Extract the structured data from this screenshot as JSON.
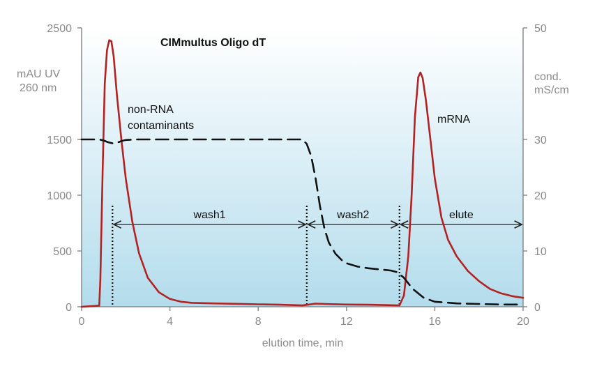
{
  "chart_data": {
    "type": "line",
    "title": "CIMmultus Oligo dT",
    "xlabel": "elution time, min",
    "ylabel_left": [
      "mAU UV",
      "260 nm"
    ],
    "ylabel_right": [
      "cond.",
      "mS/cm"
    ],
    "xlim": [
      0,
      20
    ],
    "ylim_left": [
      0,
      2500
    ],
    "ylim_right": [
      0,
      50
    ],
    "x_ticks": [
      "0",
      "4",
      "8",
      "12",
      "16",
      "20"
    ],
    "y_left_ticks": [
      "0",
      "500",
      "1000",
      "1500",
      "2500"
    ],
    "y_right_ticks": [
      "0",
      "10",
      "20",
      "30",
      "50"
    ],
    "series": [
      {
        "axis": "left",
        "style": "solid",
        "color": "#b22222",
        "x": [
          0,
          0.8,
          0.85,
          0.95,
          1.05,
          1.15,
          1.25,
          1.35,
          1.45,
          1.6,
          1.8,
          2.0,
          2.3,
          2.6,
          3.0,
          3.5,
          4.0,
          4.5,
          5.0,
          6.0,
          7.0,
          8.0,
          9.0,
          10.0,
          10.3,
          10.6,
          11.0,
          12.0,
          13.0,
          14.0,
          14.4,
          14.6,
          14.8,
          14.95,
          15.1,
          15.25,
          15.35,
          15.45,
          15.6,
          15.8,
          16.0,
          16.3,
          16.6,
          17.0,
          17.5,
          18.0,
          18.5,
          19.0,
          19.5,
          20.0
        ],
        "y": [
          0,
          10,
          250,
          1200,
          2000,
          2300,
          2390,
          2380,
          2250,
          1900,
          1500,
          1150,
          760,
          480,
          260,
          130,
          70,
          45,
          35,
          30,
          26,
          22,
          18,
          12,
          20,
          28,
          25,
          20,
          18,
          14,
          12,
          100,
          450,
          1000,
          1700,
          2060,
          2100,
          2050,
          1850,
          1500,
          1150,
          800,
          600,
          450,
          320,
          230,
          160,
          120,
          95,
          80
        ]
      },
      {
        "axis": "right",
        "style": "dashed",
        "color": "#111111",
        "x": [
          0,
          0.8,
          1.0,
          1.2,
          1.4,
          1.6,
          1.8,
          2.0,
          2.5,
          3.0,
          5.0,
          8.0,
          9.0,
          10.0,
          10.2,
          10.4,
          10.6,
          10.8,
          11.0,
          11.2,
          11.5,
          11.8,
          12.0,
          12.5,
          13.0,
          13.5,
          14.0,
          14.3,
          14.6,
          15.0,
          15.5,
          16.0,
          17.0,
          18.0,
          19.0,
          20.0
        ],
        "y": [
          30,
          30,
          29.8,
          29.5,
          29.3,
          29.4,
          29.7,
          29.9,
          30,
          30,
          30,
          30,
          30,
          30,
          29.2,
          27,
          23,
          18,
          14,
          11.5,
          9.5,
          8.3,
          7.8,
          7.2,
          6.9,
          6.7,
          6.5,
          6.2,
          5.2,
          3.2,
          1.6,
          0.9,
          0.6,
          0.5,
          0.4,
          0.4
        ]
      }
    ],
    "annotations": {
      "peak1_label": [
        "non-RNA",
        "contaminants"
      ],
      "peak2_label": "mRNA",
      "phases": [
        {
          "label": "wash1",
          "start": 1.4,
          "end": 10.2
        },
        {
          "label": "wash2",
          "start": 10.2,
          "end": 14.4
        },
        {
          "label": "elute",
          "start": 14.4,
          "end": 20
        }
      ]
    },
    "colors": {
      "background_top": "#ffffff",
      "background_bottom": "#b3dcec",
      "uv_line": "#b22222",
      "conductivity_line": "#111111"
    },
    "grid": false
  }
}
